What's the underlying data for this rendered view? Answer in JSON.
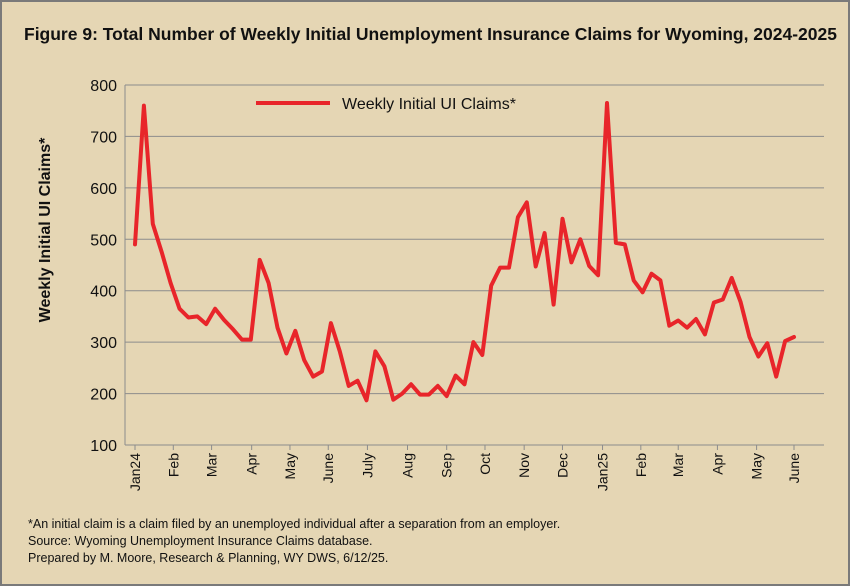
{
  "title": "Figure 9: Total Number of Weekly Initial Unemployment Insurance Claims for Wyoming, 2024-2025",
  "footnotes": [
    "*An initial claim is a claim filed by an unemployed individual after a separation from an employer.",
    "Source: Wyoming Unemployment Insurance Claims database.",
    "Prepared by M. Moore, Research & Planning, WY DWS, 6/12/25."
  ],
  "chart_data": {
    "type": "line",
    "ylabel": "Weekly Initial UI Claims*",
    "ylim": [
      100,
      800
    ],
    "yticks": [
      100,
      200,
      300,
      400,
      500,
      600,
      700,
      800
    ],
    "grid": true,
    "legend_position": "top-center",
    "series": [
      {
        "name": "Weekly Initial UI Claims*",
        "color": "#e8252a",
        "values": [
          490,
          760,
          530,
          475,
          415,
          365,
          348,
          350,
          335,
          365,
          343,
          325,
          305,
          305,
          460,
          415,
          328,
          278,
          322,
          265,
          233,
          243,
          337,
          282,
          215,
          225,
          187,
          282,
          253,
          188,
          200,
          218,
          198,
          198,
          215,
          195,
          235,
          218,
          300,
          275,
          410,
          445,
          445,
          543,
          572,
          447,
          512,
          373,
          540,
          455,
          500,
          448,
          430,
          765,
          493,
          490,
          420,
          397,
          433,
          420,
          332,
          342,
          328,
          345,
          315,
          377,
          383,
          425,
          378,
          310,
          272,
          298,
          233,
          302,
          310
        ]
      }
    ],
    "xticks": [
      {
        "label": "Jan24",
        "index": 0
      },
      {
        "label": "Feb",
        "index": 4.3
      },
      {
        "label": "Mar",
        "index": 8.6
      },
      {
        "label": "Apr",
        "index": 13.1
      },
      {
        "label": "May",
        "index": 17.4
      },
      {
        "label": "June",
        "index": 21.7
      },
      {
        "label": "July",
        "index": 26.1
      },
      {
        "label": "Aug",
        "index": 30.6
      },
      {
        "label": "Sep",
        "index": 35
      },
      {
        "label": "Oct",
        "index": 39.3
      },
      {
        "label": "Nov",
        "index": 43.7
      },
      {
        "label": "Dec",
        "index": 48
      },
      {
        "label": "Jan25",
        "index": 52.5
      },
      {
        "label": "Feb",
        "index": 56.8
      },
      {
        "label": "Mar",
        "index": 61
      },
      {
        "label": "Apr",
        "index": 65.4
      },
      {
        "label": "May",
        "index": 69.8
      },
      {
        "label": "June",
        "index": 74
      }
    ]
  }
}
